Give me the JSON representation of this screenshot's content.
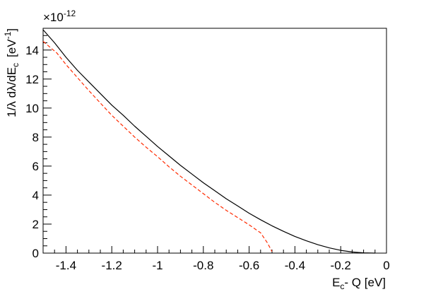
{
  "chart_data": {
    "type": "line",
    "xlabel": {
      "main": "E",
      "sub": "c",
      "rest": "- Q [eV]"
    },
    "ylabel": {
      "main": "1/λ dλ/dE",
      "sub": "c",
      "unit": "[eV",
      "sup": "-1",
      "close": "]"
    },
    "y_multiplier": {
      "base": "×10",
      "exponent": "-12"
    },
    "xlim": [
      -1.5,
      0
    ],
    "ylim": [
      0,
      15.5
    ],
    "x_ticks": [
      -1.4,
      -1.2,
      -1,
      -0.8,
      -0.6,
      -0.4,
      -0.2,
      0
    ],
    "x_tick_labels": [
      "-1.4",
      "-1.2",
      "-1",
      "-0.8",
      "-0.6",
      "-0.4",
      "-0.2",
      "0"
    ],
    "y_ticks": [
      0,
      2,
      4,
      6,
      8,
      10,
      12,
      14
    ],
    "y_tick_labels": [
      "0",
      "2",
      "4",
      "6",
      "8",
      "10",
      "12",
      "14"
    ],
    "grid": false,
    "series": [
      {
        "color": "#000000",
        "style": "solid",
        "x": [
          -1.5,
          -1.45,
          -1.4,
          -1.35,
          -1.3,
          -1.25,
          -1.2,
          -1.15,
          -1.1,
          -1.05,
          -1.0,
          -0.95,
          -0.9,
          -0.85,
          -0.8,
          -0.75,
          -0.7,
          -0.65,
          -0.6,
          -0.55,
          -0.5,
          -0.45,
          -0.4,
          -0.35,
          -0.3,
          -0.25,
          -0.2,
          -0.15,
          -0.1,
          -0.05
        ],
        "values": [
          15.4,
          14.5,
          13.5,
          12.6,
          11.8,
          11.0,
          10.2,
          9.5,
          8.75,
          8.05,
          7.35,
          6.7,
          6.05,
          5.45,
          4.85,
          4.3,
          3.75,
          3.25,
          2.75,
          2.3,
          1.88,
          1.5,
          1.15,
          0.85,
          0.58,
          0.36,
          0.19,
          0.08,
          0.02,
          0.0
        ]
      },
      {
        "color": "#ff2a00",
        "style": "dashed",
        "x": [
          -1.5,
          -1.47,
          -1.44,
          -1.4,
          -1.35,
          -1.3,
          -1.25,
          -1.2,
          -1.15,
          -1.1,
          -1.05,
          -1.0,
          -0.95,
          -0.9,
          -0.85,
          -0.8,
          -0.75,
          -0.7,
          -0.65,
          -0.6,
          -0.55,
          -0.52,
          -0.5
        ],
        "values": [
          14.6,
          14.2,
          13.8,
          13.0,
          12.1,
          11.2,
          10.35,
          9.5,
          8.75,
          8.0,
          7.3,
          6.65,
          5.95,
          5.3,
          4.7,
          4.1,
          3.5,
          2.95,
          2.45,
          1.95,
          1.4,
          0.7,
          0.1
        ]
      }
    ]
  }
}
